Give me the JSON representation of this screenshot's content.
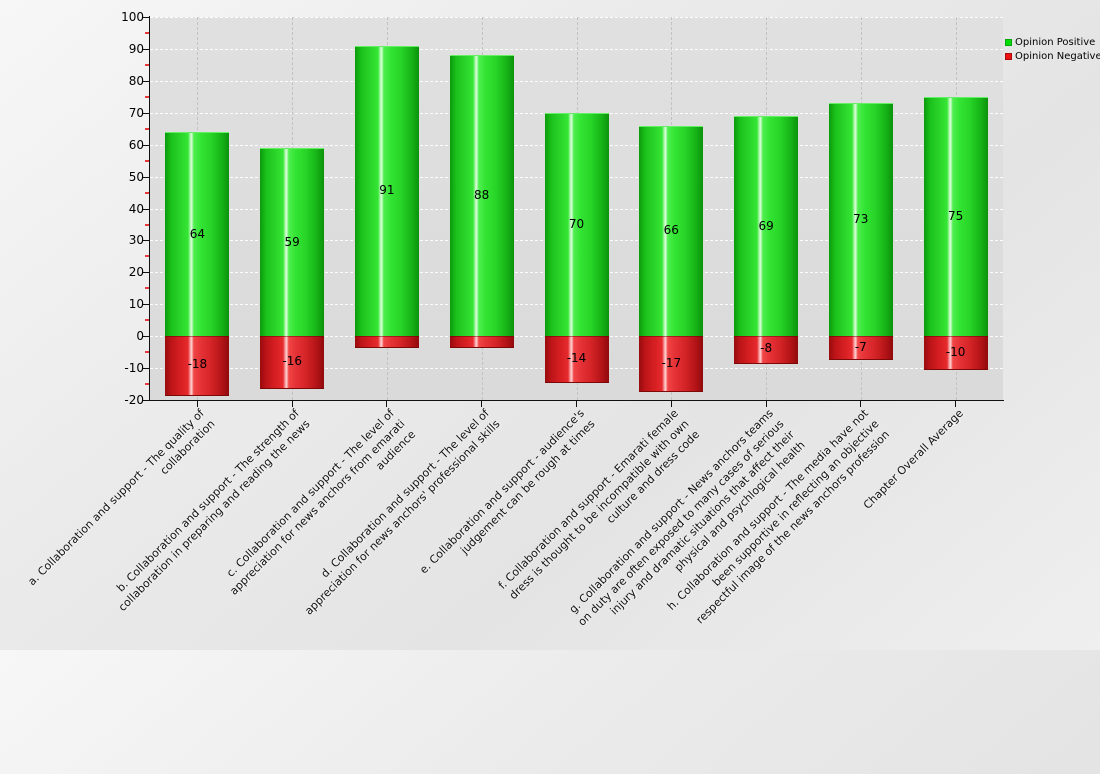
{
  "chart_data": {
    "type": "bar",
    "title": "",
    "legend_position": "top-right",
    "grid": true,
    "ylim": [
      -20,
      100
    ],
    "y_major_step": 10,
    "y_minor_step": 5,
    "y_tick_labels": [
      "100",
      "90",
      "80",
      "70",
      "60",
      "50",
      "40",
      "30",
      "20",
      "10",
      "0",
      "-10",
      "-20"
    ],
    "categories": [
      "a. Collaboration and support - The quality of\ncollaboration",
      "b. Collaboration and support - The strength of\ncollaboration in preparing and reading the news",
      "c. Collaboration and support - The level of\nappreciation for news anchors from emarati\naudience",
      "d. Collaboration and support - The level of\nappreciation for news anchors' professional skills",
      "e. Collaboration and support - audience's\njudgement can be rough at times",
      "f. Collaboration and support - Emarati female\ndress is thought to be incompatible with own\nculture and dress code",
      "g. Collaboration and support - News anchors teams\non duty are often exposed to many cases of serious\ninjury and dramatic situations that affect their\nphysical and psychlogical health",
      "h. Collaboration and support - The media have not\nbeen supportive in reflecting an objective\nrespectful image of the news anchors profession",
      "Chapter Overall Average"
    ],
    "series": [
      {
        "name": "Opinion Positive",
        "color": "#00dc08",
        "values": [
          64,
          59,
          91,
          88,
          70,
          66,
          69,
          73,
          75
        ]
      },
      {
        "name": "Opinion Negative",
        "color": "#ee1111",
        "values": [
          -18,
          -16,
          -3,
          -3,
          -14,
          -17,
          -8,
          -7,
          -10
        ]
      }
    ],
    "value_label_min_abs_to_show": 5,
    "colors": {
      "plot_background": "#dcdcdc",
      "page_background": "#ececec",
      "horizontal_grid": "#ffffff",
      "vertical_grid": "#c2c2c2",
      "axis": "#111111",
      "minor_tick": "#e03a3a",
      "bar_positive": "#2ce02c",
      "bar_negative": "#e42424",
      "label_text": "#000000"
    }
  }
}
